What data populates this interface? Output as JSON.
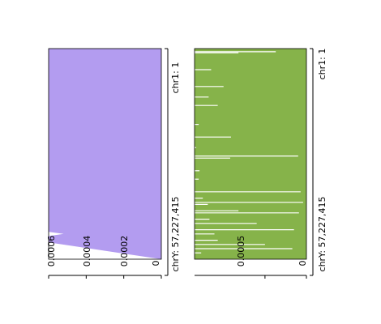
{
  "chart_data": [
    {
      "type": "area",
      "orientation": "rotated-90",
      "color": "#b39cf0",
      "x_range": [
        "chr1: 1",
        "chrY: 57,227,415"
      ],
      "x_tick_labels": [
        "chr1: 1",
        "chrY: 57,227,415"
      ],
      "y_tick_labels": [
        "0.0006",
        "0.0004",
        "0.0002",
        "0"
      ],
      "ylim": [
        0,
        0.0006
      ],
      "grid": false,
      "points": [
        {
          "x": 0.0,
          "y": 0.0006
        },
        {
          "x": 0.85,
          "y": 0.0006
        },
        {
          "x": 0.87,
          "y": 0.0006
        },
        {
          "x": 0.88,
          "y": 0.00052
        },
        {
          "x": 0.89,
          "y": 0.0006
        },
        {
          "x": 0.92,
          "y": 0.0006
        },
        {
          "x": 1.0,
          "y": 0.0
        }
      ]
    },
    {
      "type": "bar",
      "orientation": "rotated-90",
      "color": "#86b34a",
      "x_range": [
        "chr1: 1",
        "chrY: 57,227,415"
      ],
      "x_tick_labels": [
        "chr1: 1",
        "chrY: 57,227,415"
      ],
      "y_tick_labels": [
        "0.0005",
        "0"
      ],
      "ylim": [
        0,
        0.00135
      ],
      "grid": false,
      "gaps": [
        {
          "pos": 0.015,
          "depth": 0.00098
        },
        {
          "pos": 0.02,
          "depth": 0.00053
        },
        {
          "pos": 0.1,
          "depth": 0.0002
        },
        {
          "pos": 0.18,
          "depth": 0.00035
        },
        {
          "pos": 0.23,
          "depth": 0.00017
        },
        {
          "pos": 0.27,
          "depth": 0.00028
        },
        {
          "pos": 0.36,
          "depth": 5e-05
        },
        {
          "pos": 0.42,
          "depth": 0.00044
        },
        {
          "pos": 0.47,
          "depth": 2e-05
        },
        {
          "pos": 0.51,
          "depth": 0.00125
        },
        {
          "pos": 0.52,
          "depth": 0.00043
        },
        {
          "pos": 0.58,
          "depth": 6e-05
        },
        {
          "pos": 0.62,
          "depth": 5e-05
        },
        {
          "pos": 0.68,
          "depth": 0.00128
        },
        {
          "pos": 0.71,
          "depth": 0.0001
        },
        {
          "pos": 0.73,
          "depth": 0.00131
        },
        {
          "pos": 0.74,
          "depth": 0.00016
        },
        {
          "pos": 0.77,
          "depth": 0.00053
        },
        {
          "pos": 0.78,
          "depth": 0.00126
        },
        {
          "pos": 0.81,
          "depth": 0.00018
        },
        {
          "pos": 0.83,
          "depth": 0.00075
        },
        {
          "pos": 0.86,
          "depth": 0.0012
        },
        {
          "pos": 0.88,
          "depth": 0.00024
        },
        {
          "pos": 0.91,
          "depth": 0.00028
        },
        {
          "pos": 0.93,
          "depth": 0.00085
        },
        {
          "pos": 0.95,
          "depth": 0.00118
        },
        {
          "pos": 0.97,
          "depth": 8e-05
        }
      ]
    }
  ]
}
